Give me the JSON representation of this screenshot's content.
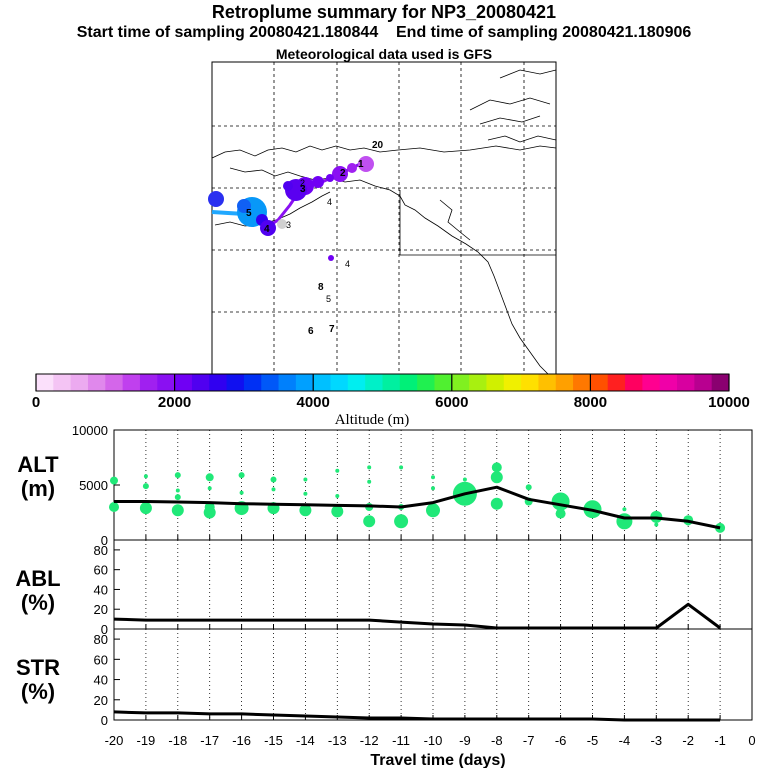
{
  "title": "Retroplume summary for NP3_20080421",
  "start_label": "Start time of sampling 20080421.180844",
  "end_label": "End time of sampling 20080421.180906",
  "met_label": "Meteorological data used is GFS",
  "colorbar": {
    "title": "Altitude (m)",
    "ticks": [
      "0",
      "2000",
      "4000",
      "6000",
      "8000",
      "10000"
    ],
    "colors": [
      "#fbe0fb",
      "#f4c4f4",
      "#ecaaf0",
      "#e088ec",
      "#d466ea",
      "#c040ee",
      "#a020f0",
      "#8a10f2",
      "#7000f4",
      "#5000f0",
      "#3000f0",
      "#1010f0",
      "#0030f4",
      "#0058f8",
      "#0080fc",
      "#00a0ff",
      "#00c0ff",
      "#00d8ff",
      "#00eef0",
      "#00f0c8",
      "#00f0a0",
      "#00f078",
      "#20f050",
      "#50f030",
      "#80f020",
      "#a8f010",
      "#d0f000",
      "#f0f000",
      "#ffe000",
      "#ffc000",
      "#ffa000",
      "#ff7800",
      "#ff5000",
      "#ff2020",
      "#ff0060",
      "#ff0090",
      "#f000a8",
      "#d800a0",
      "#b80090",
      "#8a0070"
    ]
  },
  "map": {
    "labels": [
      "1",
      "2",
      "3",
      "4",
      "5",
      "6",
      "7",
      "8",
      "20"
    ]
  },
  "chart_data": [
    {
      "type": "line",
      "name": "altitude",
      "ylabel": "ALT (m)",
      "ylabel_line1": "ALT",
      "ylabel_line2": "(m)",
      "ylim": [
        0,
        10000
      ],
      "yticks": [
        "0",
        "5000",
        "10000"
      ],
      "x": [
        -20,
        -19,
        -18,
        -17,
        -16,
        -15,
        -14,
        -13,
        -12,
        -11,
        -10,
        -9,
        -8,
        -7,
        -6,
        -5,
        -4,
        -3,
        -2,
        -1
      ],
      "values": [
        3500,
        3500,
        3450,
        3400,
        3300,
        3250,
        3200,
        3150,
        3100,
        3000,
        3400,
        4200,
        4800,
        3700,
        3200,
        2700,
        2000,
        2000,
        1700,
        1100
      ],
      "scatter_points": [
        {
          "x": -20,
          "y": 5400,
          "s": 4
        },
        {
          "x": -20,
          "y": 3000,
          "s": 5
        },
        {
          "x": -19,
          "y": 5800,
          "s": 2
        },
        {
          "x": -19,
          "y": 4900,
          "s": 3
        },
        {
          "x": -19,
          "y": 2900,
          "s": 6
        },
        {
          "x": -18,
          "y": 5900,
          "s": 3
        },
        {
          "x": -18,
          "y": 4500,
          "s": 2
        },
        {
          "x": -18,
          "y": 3900,
          "s": 3
        },
        {
          "x": -18,
          "y": 2700,
          "s": 6
        },
        {
          "x": -17,
          "y": 5700,
          "s": 4
        },
        {
          "x": -17,
          "y": 4700,
          "s": 2
        },
        {
          "x": -17,
          "y": 3000,
          "s": 5
        },
        {
          "x": -17,
          "y": 2500,
          "s": 6
        },
        {
          "x": -16,
          "y": 5900,
          "s": 3
        },
        {
          "x": -16,
          "y": 4300,
          "s": 2
        },
        {
          "x": -16,
          "y": 2900,
          "s": 7
        },
        {
          "x": -15,
          "y": 5500,
          "s": 3
        },
        {
          "x": -15,
          "y": 4600,
          "s": 2
        },
        {
          "x": -15,
          "y": 2900,
          "s": 6
        },
        {
          "x": -14,
          "y": 5500,
          "s": 2
        },
        {
          "x": -14,
          "y": 4200,
          "s": 2
        },
        {
          "x": -14,
          "y": 2700,
          "s": 6
        },
        {
          "x": -13,
          "y": 6300,
          "s": 2
        },
        {
          "x": -13,
          "y": 4000,
          "s": 2
        },
        {
          "x": -13,
          "y": 2600,
          "s": 6
        },
        {
          "x": -12,
          "y": 6600,
          "s": 2
        },
        {
          "x": -12,
          "y": 5300,
          "s": 2
        },
        {
          "x": -12,
          "y": 3000,
          "s": 4
        },
        {
          "x": -12,
          "y": 1700,
          "s": 6
        },
        {
          "x": -11,
          "y": 6600,
          "s": 2
        },
        {
          "x": -11,
          "y": 3000,
          "s": 3
        },
        {
          "x": -11,
          "y": 1700,
          "s": 7
        },
        {
          "x": -10,
          "y": 5700,
          "s": 2
        },
        {
          "x": -10,
          "y": 4700,
          "s": 2
        },
        {
          "x": -10,
          "y": 2700,
          "s": 7
        },
        {
          "x": -9,
          "y": 5500,
          "s": 2
        },
        {
          "x": -9,
          "y": 4200,
          "s": 12
        },
        {
          "x": -8,
          "y": 6600,
          "s": 5
        },
        {
          "x": -8,
          "y": 5700,
          "s": 6
        },
        {
          "x": -8,
          "y": 3300,
          "s": 6
        },
        {
          "x": -7,
          "y": 4800,
          "s": 3
        },
        {
          "x": -7,
          "y": 3500,
          "s": 4
        },
        {
          "x": -6,
          "y": 3500,
          "s": 9
        },
        {
          "x": -6,
          "y": 2400,
          "s": 5
        },
        {
          "x": -5,
          "y": 2800,
          "s": 9
        },
        {
          "x": -5,
          "y": 2200,
          "s": 2
        },
        {
          "x": -4,
          "y": 2800,
          "s": 2
        },
        {
          "x": -4,
          "y": 1700,
          "s": 8
        },
        {
          "x": -3,
          "y": 2100,
          "s": 6
        },
        {
          "x": -3,
          "y": 1400,
          "s": 2
        },
        {
          "x": -2,
          "y": 1800,
          "s": 5
        },
        {
          "x": -2,
          "y": 1500,
          "s": 2
        },
        {
          "x": -1,
          "y": 1100,
          "s": 5
        }
      ]
    },
    {
      "type": "line",
      "name": "abl",
      "ylabel": "ABL (%)",
      "ylabel_line1": "ABL",
      "ylabel_line2": "(%)",
      "ylim": [
        0,
        90
      ],
      "yticks": [
        "0",
        "20",
        "40",
        "60",
        "80"
      ],
      "x": [
        -20,
        -19,
        -18,
        -17,
        -16,
        -15,
        -14,
        -13,
        -12,
        -11,
        -10,
        -9,
        -8,
        -7,
        -6,
        -5,
        -4,
        -3,
        -2,
        -1
      ],
      "values": [
        10,
        9,
        9,
        9,
        9,
        9,
        9,
        9,
        9,
        7,
        5,
        4,
        1,
        1,
        1,
        1,
        1,
        1,
        25,
        1
      ]
    },
    {
      "type": "line",
      "name": "str",
      "ylabel": "STR (%)",
      "ylabel_line1": "STR",
      "ylabel_line2": "(%)",
      "xlabel": "Travel time (days)",
      "ylim": [
        0,
        90
      ],
      "xlim": [
        -20,
        0
      ],
      "yticks": [
        "0",
        "20",
        "40",
        "60",
        "80"
      ],
      "xticks": [
        "-20",
        "-19",
        "-18",
        "-17",
        "-16",
        "-15",
        "-14",
        "-13",
        "-12",
        "-11",
        "-10",
        "-9",
        "-8",
        "-7",
        "-6",
        "-5",
        "-4",
        "-3",
        "-2",
        "-1",
        "0"
      ],
      "x": [
        -20,
        -19,
        -18,
        -17,
        -16,
        -15,
        -14,
        -13,
        -12,
        -11,
        -10,
        -9,
        -8,
        -7,
        -6,
        -5,
        -4,
        -3,
        -2,
        -1
      ],
      "values": [
        8,
        7,
        7,
        6,
        6,
        5,
        4,
        3,
        2,
        2,
        1,
        1,
        1,
        1,
        1,
        1,
        0,
        0,
        0,
        0
      ]
    }
  ]
}
